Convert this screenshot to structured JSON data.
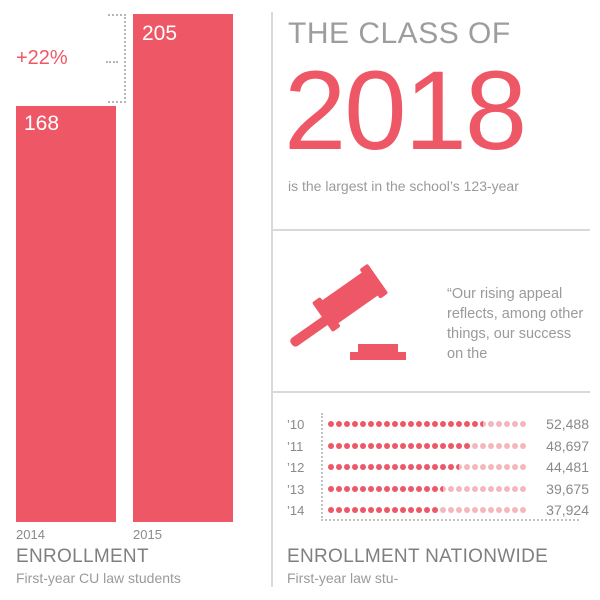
{
  "headline": {
    "prefix": "THE CLASS OF",
    "year": "2018",
    "subline": "is the largest in the school’s 123-year"
  },
  "quote": {
    "text": "“Our rising appeal reflects, among other things, our success on the",
    "icon": "gavel-icon"
  },
  "colors": {
    "accent": "#ee5766",
    "accent_light": "#f4b7bd",
    "text_gray": "#9a9a9a"
  },
  "chart_data": [
    {
      "type": "bar",
      "title": "ENROLLMENT",
      "subtitle": "First-year CU law students",
      "categories": [
        "2014",
        "2015"
      ],
      "values": [
        168,
        205
      ],
      "value_labels": [
        "168",
        "205"
      ],
      "annotation": "+22%",
      "ylim": [
        0,
        205
      ]
    },
    {
      "type": "dot",
      "title": "ENROLLMENT NATIONWIDE",
      "subtitle": "First-year law stu-",
      "categories": [
        "’10",
        "’11",
        "’12",
        "’13",
        "’14"
      ],
      "values": [
        52488,
        48697,
        44481,
        39675,
        37924
      ],
      "value_labels": [
        "52,488",
        "48,697",
        "44,481",
        "39,675",
        "37,924"
      ],
      "dots_per_row": 25,
      "filled_dots": [
        19.5,
        18,
        16.5,
        14.5,
        14
      ]
    }
  ]
}
